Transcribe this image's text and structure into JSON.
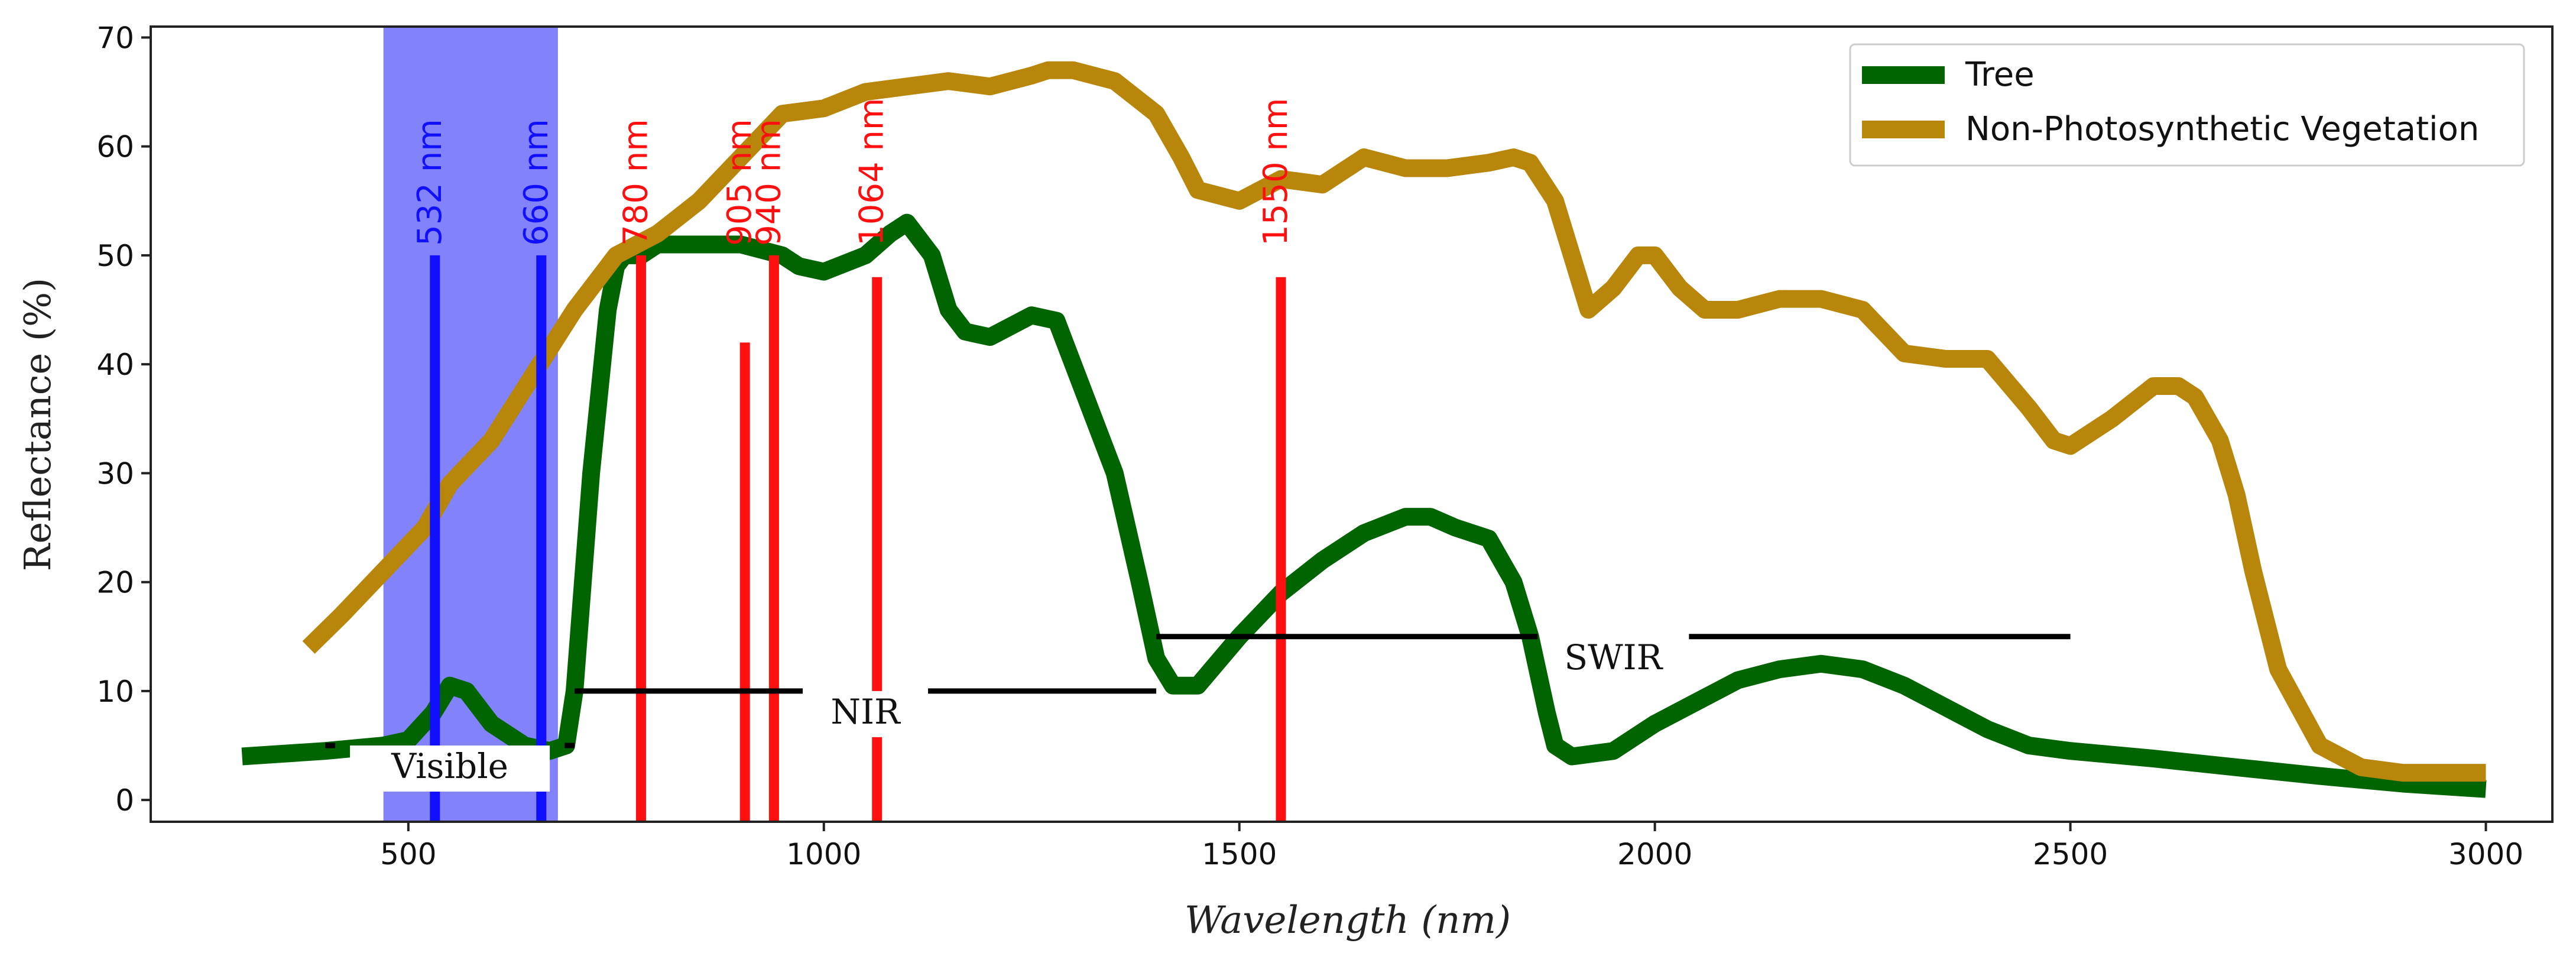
{
  "chart_data": {
    "type": "line",
    "title": "",
    "xlabel": "Wavelength (nm)",
    "ylabel": "Reflectance (%)",
    "xlim": [
      190,
      3080
    ],
    "ylim": [
      -2,
      71
    ],
    "xticks": [
      500,
      1000,
      1500,
      2000,
      2500,
      3000
    ],
    "yticks": [
      0,
      10,
      20,
      30,
      40,
      50,
      60,
      70
    ],
    "legend_position": "top-right",
    "series": [
      {
        "name": "Tree",
        "color": "#006400",
        "x": [
          300,
          400,
          470,
          500,
          530,
          550,
          570,
          600,
          640,
          670,
          690,
          700,
          720,
          740,
          750,
          760,
          780,
          800,
          850,
          900,
          950,
          970,
          1000,
          1050,
          1080,
          1100,
          1130,
          1150,
          1170,
          1200,
          1250,
          1280,
          1300,
          1350,
          1380,
          1400,
          1420,
          1450,
          1500,
          1550,
          1600,
          1650,
          1700,
          1730,
          1760,
          1800,
          1830,
          1850,
          1870,
          1880,
          1900,
          1950,
          2000,
          2050,
          2100,
          2150,
          2200,
          2250,
          2300,
          2350,
          2400,
          2450,
          2500,
          2600,
          2700,
          2800,
          2900,
          3000
        ],
        "y": [
          4,
          4.5,
          5,
          5.5,
          8,
          10.5,
          10,
          7,
          5,
          4.5,
          5,
          10,
          30,
          45,
          49,
          50,
          50,
          51,
          51,
          51,
          50,
          49,
          48.5,
          50,
          52,
          53,
          50,
          45,
          43,
          42.5,
          44.5,
          44,
          40,
          30,
          20,
          13,
          10.5,
          10.5,
          15,
          19,
          22,
          24.5,
          26,
          26,
          25,
          24,
          20,
          15,
          8,
          5,
          4,
          4.5,
          7,
          9,
          11,
          12,
          12.5,
          12,
          10.5,
          8.5,
          6.5,
          5,
          4.5,
          3.8,
          3,
          2.2,
          1.5,
          1
        ]
      },
      {
        "name": "Non-Photosynthetic Vegetation",
        "color": "#b8860b",
        "x": [
          380,
          420,
          470,
          520,
          550,
          600,
          650,
          700,
          750,
          800,
          850,
          900,
          950,
          1000,
          1050,
          1100,
          1150,
          1200,
          1250,
          1270,
          1300,
          1350,
          1400,
          1430,
          1450,
          1500,
          1550,
          1600,
          1650,
          1700,
          1750,
          1800,
          1830,
          1850,
          1880,
          1900,
          1920,
          1950,
          1980,
          2000,
          2030,
          2060,
          2100,
          2150,
          2200,
          2250,
          2300,
          2350,
          2400,
          2450,
          2480,
          2500,
          2550,
          2600,
          2630,
          2650,
          2680,
          2700,
          2720,
          2750,
          2800,
          2850,
          2900,
          2950,
          3000
        ],
        "y": [
          14,
          17,
          21,
          25,
          29,
          33,
          39,
          45,
          50,
          52,
          55,
          59,
          63,
          63.5,
          65,
          65.5,
          66,
          65.5,
          66.5,
          67,
          67,
          66,
          63,
          59,
          56,
          55,
          57,
          56.5,
          59,
          58,
          58,
          58.5,
          59,
          58.5,
          55,
          50,
          45,
          47,
          50,
          50,
          47,
          45,
          45,
          46,
          46,
          45,
          41,
          40.5,
          40.5,
          36,
          33,
          32.5,
          35,
          38,
          38,
          37,
          33,
          28,
          21,
          12,
          5,
          3,
          2.5,
          2.5,
          2.5
        ]
      }
    ],
    "region_span": {
      "label": "Visible",
      "x0": 470,
      "x1": 680,
      "color": "#7b7bfb"
    },
    "wavelength_markers": [
      {
        "label": "532 nm",
        "x": 532,
        "color": "#1010ff",
        "line_top": 50
      },
      {
        "label": "660 nm",
        "x": 660,
        "color": "#1010ff",
        "line_top": 50
      },
      {
        "label": "780 nm",
        "x": 780,
        "color": "#ff1010",
        "line_top": 50
      },
      {
        "label": "905 nm",
        "x": 905,
        "color": "#ff1010",
        "line_top": 42
      },
      {
        "label": "940 nm",
        "x": 940,
        "color": "#ff1010",
        "line_top": 50
      },
      {
        "label": "1064 nm",
        "x": 1064,
        "color": "#ff1010",
        "line_top": 48
      },
      {
        "label": "1550 nm",
        "x": 1550,
        "color": "#ff1010",
        "line_top": 48
      }
    ],
    "spectral_ranges": [
      {
        "label": "Visible",
        "x0": 400,
        "x1": 700,
        "y": 5
      },
      {
        "label": "NIR",
        "x0": 700,
        "x1": 1400,
        "y": 10
      },
      {
        "label": "SWIR",
        "x0": 1400,
        "x1": 2500,
        "y": 15
      }
    ]
  }
}
